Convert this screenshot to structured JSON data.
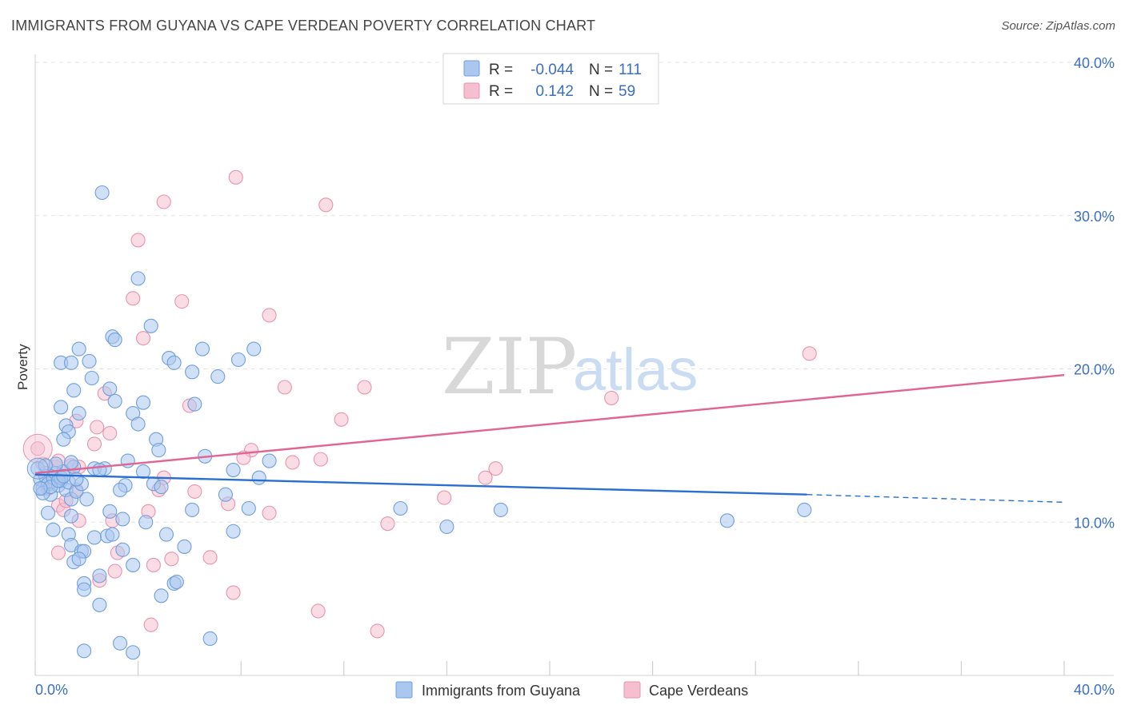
{
  "title": "IMMIGRANTS FROM GUYANA VS CAPE VERDEAN POVERTY CORRELATION CHART",
  "source": "Source: ZipAtlas.com",
  "watermark": {
    "zip": "ZIP",
    "atlas": "atlas"
  },
  "colors": {
    "blue_fill": "#a9c7ef",
    "blue_stroke": "#6f9fdc",
    "blue_line": "#2a6fd0",
    "pink_fill": "#f5bfd0",
    "pink_stroke": "#e893b0",
    "pink_line": "#e06593",
    "grid": "#e3e3e3",
    "axis_text": "#3a6fc4"
  },
  "legend": {
    "rows": [
      {
        "r_label": "R =",
        "r_value": "-0.044",
        "n_label": "N =",
        "n_value": "111"
      },
      {
        "r_label": "R =",
        "r_value": "0.142",
        "n_label": "N =",
        "n_value": "59"
      }
    ]
  },
  "bottom_legend": [
    "Immigrants from Guyana",
    "Cape Verdeans"
  ],
  "chart_data": {
    "type": "scatter",
    "title": "IMMIGRANTS FROM GUYANA VS CAPE VERDEAN POVERTY CORRELATION CHART",
    "xlabel": "",
    "ylabel": "Poverty",
    "xlim": [
      0,
      40
    ],
    "ylim": [
      0,
      40
    ],
    "x_tick_labels": [
      "0.0%",
      "40.0%"
    ],
    "y_tick_labels": [
      "10.0%",
      "20.0%",
      "30.0%",
      "40.0%"
    ],
    "y_ticks": [
      10,
      20,
      30,
      40
    ],
    "grid": true,
    "legend_position": "top-center",
    "series": [
      {
        "name": "Immigrants from Guyana",
        "color": "blue",
        "r": -0.044,
        "n": 111,
        "trend": {
          "x_start": 0,
          "y_start": 13.1,
          "x_end": 30,
          "y_end": 11.8,
          "dash_x_end": 40,
          "dash_y_end": 11.3
        },
        "points": [
          [
            0.1,
            13.5
          ],
          [
            0.2,
            12.8
          ],
          [
            0.3,
            12.2
          ],
          [
            0.4,
            13.0
          ],
          [
            0.5,
            12.5
          ],
          [
            0.6,
            11.8
          ],
          [
            0.7,
            12.9
          ],
          [
            0.8,
            13.2
          ],
          [
            0.9,
            12.4
          ],
          [
            1.0,
            12.7
          ],
          [
            1.1,
            13.3
          ],
          [
            1.2,
            12.1
          ],
          [
            1.3,
            12.6
          ],
          [
            1.4,
            11.5
          ],
          [
            1.5,
            13.6
          ],
          [
            1.6,
            12.0
          ],
          [
            0.3,
            11.9
          ],
          [
            0.5,
            10.6
          ],
          [
            0.8,
            13.8
          ],
          [
            1.0,
            12.9
          ],
          [
            2.6,
            31.5
          ],
          [
            4.0,
            25.9
          ],
          [
            4.5,
            22.8
          ],
          [
            3.0,
            22.1
          ],
          [
            3.1,
            21.9
          ],
          [
            1.7,
            21.3
          ],
          [
            6.5,
            21.3
          ],
          [
            8.5,
            21.3
          ],
          [
            1.0,
            20.4
          ],
          [
            1.4,
            20.4
          ],
          [
            2.1,
            20.5
          ],
          [
            5.2,
            20.7
          ],
          [
            5.4,
            20.4
          ],
          [
            6.1,
            19.8
          ],
          [
            7.1,
            19.5
          ],
          [
            7.9,
            20.6
          ],
          [
            2.2,
            19.4
          ],
          [
            2.9,
            18.7
          ],
          [
            1.5,
            18.6
          ],
          [
            3.1,
            17.9
          ],
          [
            4.2,
            17.8
          ],
          [
            6.2,
            17.7
          ],
          [
            1.0,
            17.5
          ],
          [
            1.7,
            17.1
          ],
          [
            3.8,
            17.1
          ],
          [
            1.2,
            16.3
          ],
          [
            4.0,
            16.4
          ],
          [
            1.3,
            15.9
          ],
          [
            1.1,
            15.4
          ],
          [
            4.7,
            15.4
          ],
          [
            4.8,
            14.7
          ],
          [
            6.6,
            14.3
          ],
          [
            9.1,
            14.0
          ],
          [
            3.6,
            14.0
          ],
          [
            1.4,
            13.9
          ],
          [
            2.3,
            13.5
          ],
          [
            2.7,
            13.5
          ],
          [
            4.2,
            13.3
          ],
          [
            7.7,
            13.4
          ],
          [
            8.7,
            12.9
          ],
          [
            2.5,
            13.4
          ],
          [
            3.5,
            12.4
          ],
          [
            4.6,
            12.5
          ],
          [
            4.9,
            12.3
          ],
          [
            3.3,
            12.1
          ],
          [
            7.4,
            11.8
          ],
          [
            1.8,
            12.5
          ],
          [
            2.0,
            11.5
          ],
          [
            3.4,
            10.2
          ],
          [
            4.3,
            10.0
          ],
          [
            6.1,
            10.8
          ],
          [
            8.3,
            10.9
          ],
          [
            14.2,
            10.9
          ],
          [
            18.1,
            10.8
          ],
          [
            1.4,
            10.4
          ],
          [
            2.9,
            10.7
          ],
          [
            5.1,
            9.2
          ],
          [
            7.7,
            9.4
          ],
          [
            16.0,
            9.7
          ],
          [
            26.9,
            10.1
          ],
          [
            29.9,
            10.8
          ],
          [
            0.7,
            9.5
          ],
          [
            1.3,
            9.2
          ],
          [
            2.3,
            9.0
          ],
          [
            2.8,
            9.1
          ],
          [
            3.0,
            9.2
          ],
          [
            1.4,
            8.5
          ],
          [
            1.8,
            8.1
          ],
          [
            1.9,
            8.1
          ],
          [
            3.4,
            8.2
          ],
          [
            5.8,
            8.4
          ],
          [
            1.5,
            7.4
          ],
          [
            1.7,
            7.6
          ],
          [
            2.5,
            6.5
          ],
          [
            3.8,
            7.2
          ],
          [
            1.9,
            6.0
          ],
          [
            5.4,
            6.0
          ],
          [
            5.5,
            6.1
          ],
          [
            1.9,
            5.6
          ],
          [
            4.9,
            5.2
          ],
          [
            2.5,
            4.6
          ],
          [
            6.8,
            2.4
          ],
          [
            3.3,
            2.1
          ],
          [
            1.9,
            1.6
          ],
          [
            3.8,
            1.5
          ],
          [
            0.4,
            13.7
          ],
          [
            0.6,
            12.3
          ],
          [
            0.9,
            12.7
          ],
          [
            1.1,
            13.0
          ],
          [
            0.2,
            12.2
          ],
          [
            1.6,
            12.8
          ]
        ]
      },
      {
        "name": "Cape Verdeans",
        "color": "pink",
        "r": 0.142,
        "n": 59,
        "trend": {
          "x_start": 0,
          "y_start": 13.2,
          "x_end": 40,
          "y_end": 19.6
        },
        "points": [
          [
            0.1,
            14.8
          ],
          [
            0.3,
            13.8
          ],
          [
            0.4,
            13.2
          ],
          [
            0.6,
            12.6
          ],
          [
            0.9,
            11.1
          ],
          [
            1.1,
            10.8
          ],
          [
            0.5,
            12.2
          ],
          [
            0.8,
            13.6
          ],
          [
            1.4,
            13.7
          ],
          [
            1.6,
            12.1
          ],
          [
            7.8,
            32.5
          ],
          [
            5.0,
            30.9
          ],
          [
            11.3,
            30.7
          ],
          [
            4.0,
            28.4
          ],
          [
            3.8,
            24.6
          ],
          [
            5.7,
            24.4
          ],
          [
            9.1,
            23.5
          ],
          [
            4.2,
            22.0
          ],
          [
            30.1,
            21.0
          ],
          [
            2.7,
            18.4
          ],
          [
            9.7,
            18.8
          ],
          [
            12.8,
            18.8
          ],
          [
            22.4,
            18.1
          ],
          [
            6.0,
            17.6
          ],
          [
            11.9,
            16.7
          ],
          [
            2.4,
            16.2
          ],
          [
            1.6,
            16.6
          ],
          [
            2.9,
            15.8
          ],
          [
            2.3,
            15.1
          ],
          [
            8.4,
            14.7
          ],
          [
            8.1,
            14.2
          ],
          [
            11.1,
            14.1
          ],
          [
            10.0,
            13.9
          ],
          [
            17.9,
            13.5
          ],
          [
            0.9,
            14.0
          ],
          [
            17.5,
            12.9
          ],
          [
            1.7,
            13.6
          ],
          [
            5.0,
            12.9
          ],
          [
            4.8,
            12.1
          ],
          [
            6.2,
            12.0
          ],
          [
            15.9,
            11.6
          ],
          [
            7.5,
            11.2
          ],
          [
            9.1,
            10.6
          ],
          [
            13.7,
            9.9
          ],
          [
            4.4,
            10.7
          ],
          [
            1.7,
            10.1
          ],
          [
            3.0,
            10.1
          ],
          [
            0.9,
            8.0
          ],
          [
            3.2,
            8.0
          ],
          [
            5.3,
            7.6
          ],
          [
            6.8,
            7.7
          ],
          [
            4.6,
            7.2
          ],
          [
            3.1,
            6.8
          ],
          [
            2.5,
            6.2
          ],
          [
            7.7,
            5.4
          ],
          [
            11.0,
            4.2
          ],
          [
            4.5,
            3.3
          ],
          [
            13.3,
            2.9
          ],
          [
            1.2,
            11.4
          ]
        ]
      }
    ]
  }
}
